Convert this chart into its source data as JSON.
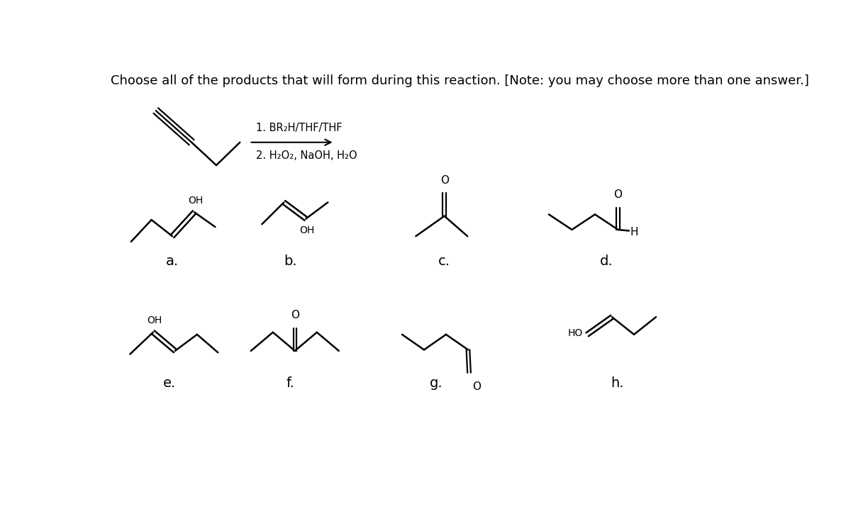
{
  "title": "Choose all of the products that will form during this reaction. [Note: you may choose more than one answer.]",
  "reagent_line1": "1. BR₂H/THF/THF",
  "reagent_line2": "2. H₂O₂, NaOH, H₂O",
  "background_color": "#ffffff",
  "line_color": "#000000",
  "text_color": "#000000",
  "label_fontsize": 14,
  "title_fontsize": 13
}
